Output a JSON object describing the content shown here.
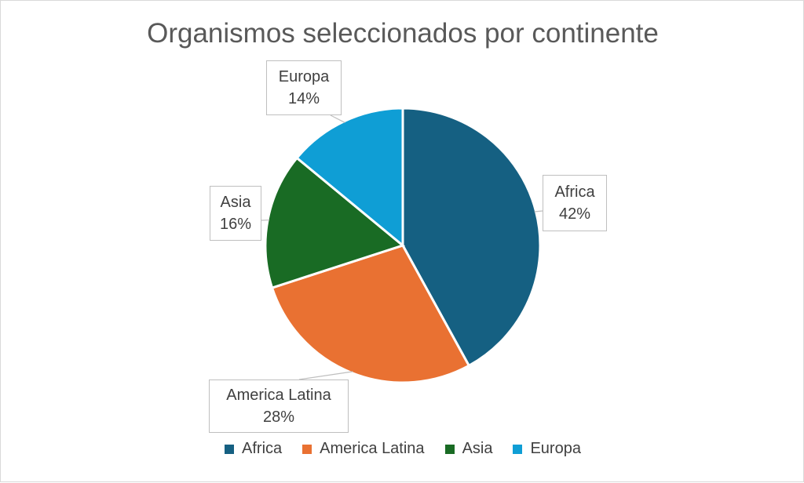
{
  "chart_data": {
    "type": "pie",
    "title": "Organismos seleccionados por continente",
    "categories": [
      "Africa",
      "America Latina",
      "Asia",
      "Europa"
    ],
    "values": [
      42,
      28,
      16,
      14
    ],
    "value_labels": [
      "42%",
      "28%",
      "16%",
      "14%"
    ],
    "colors": [
      "#156082",
      "#E97132",
      "#196B24",
      "#0F9ED5"
    ],
    "legend_position": "bottom"
  }
}
